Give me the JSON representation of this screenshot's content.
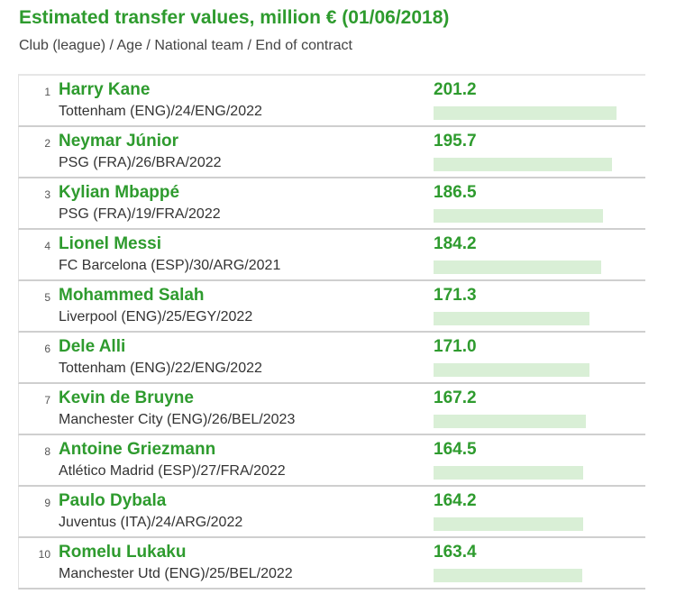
{
  "header": {
    "title": "Estimated transfer values, million € (01/06/2018)",
    "subtitle": "Club (league) / Age / National team / End of contract"
  },
  "colors": {
    "accent": "#2e9b2e",
    "bar": "#d9efd6",
    "text": "#333333",
    "divider": "#cfcfcf"
  },
  "chart_data": {
    "type": "bar",
    "title": "Estimated transfer values, million € (01/06/2018)",
    "subtitle": "Club (league) / Age / National team / End of contract",
    "categories": [
      "Harry Kane",
      "Neymar Júnior",
      "Kylian Mbappé",
      "Lionel Messi",
      "Mohammed Salah",
      "Dele Alli",
      "Kevin de Bruyne",
      "Antoine Griezmann",
      "Paulo Dybala",
      "Romelu Lukaku"
    ],
    "values": [
      201.2,
      195.7,
      186.5,
      184.2,
      171.3,
      171.0,
      167.2,
      164.5,
      164.2,
      163.4
    ],
    "rows": [
      {
        "rank": "1",
        "name": "Harry Kane",
        "detail": "Tottenham (ENG)/24/ENG/2022",
        "value": 201.2,
        "value_label": "201.2"
      },
      {
        "rank": "2",
        "name": "Neymar Júnior",
        "detail": "PSG (FRA)/26/BRA/2022",
        "value": 195.7,
        "value_label": "195.7"
      },
      {
        "rank": "3",
        "name": "Kylian Mbappé",
        "detail": "PSG (FRA)/19/FRA/2022",
        "value": 186.5,
        "value_label": "186.5"
      },
      {
        "rank": "4",
        "name": "Lionel Messi",
        "detail": "FC Barcelona (ESP)/30/ARG/2021",
        "value": 184.2,
        "value_label": "184.2"
      },
      {
        "rank": "5",
        "name": "Mohammed Salah",
        "detail": "Liverpool (ENG)/25/EGY/2022",
        "value": 171.3,
        "value_label": "171.3"
      },
      {
        "rank": "6",
        "name": "Dele Alli",
        "detail": "Tottenham (ENG)/22/ENG/2022",
        "value": 171.0,
        "value_label": "171.0"
      },
      {
        "rank": "7",
        "name": "Kevin de Bruyne",
        "detail": "Manchester City (ENG)/26/BEL/2023",
        "value": 167.2,
        "value_label": "167.2"
      },
      {
        "rank": "8",
        "name": "Antoine Griezmann",
        "detail": "Atlético Madrid (ESP)/27/FRA/2022",
        "value": 164.5,
        "value_label": "164.5"
      },
      {
        "rank": "9",
        "name": "Paulo Dybala",
        "detail": "Juventus (ITA)/24/ARG/2022",
        "value": 164.2,
        "value_label": "164.2"
      },
      {
        "rank": "10",
        "name": "Romelu Lukaku",
        "detail": "Manchester Utd (ENG)/25/BEL/2022",
        "value": 163.4,
        "value_label": "163.4"
      }
    ]
  }
}
